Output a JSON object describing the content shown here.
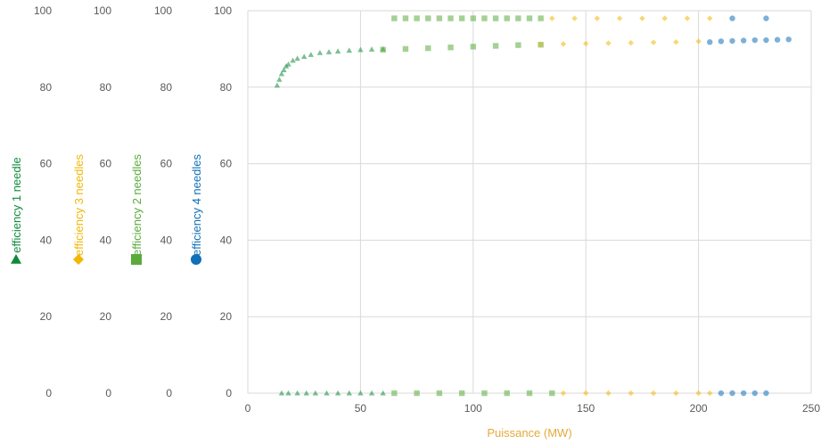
{
  "chart_data": {
    "type": "scatter",
    "title": "",
    "xlabel": "Puissance (MW)",
    "x_ticks": [
      "0",
      "50",
      "100",
      "150",
      "200",
      "250"
    ],
    "xlim": [
      0,
      250
    ],
    "ylim": [
      0,
      100
    ],
    "y_ticks": [
      "0",
      "20",
      "40",
      "60",
      "80",
      "100"
    ],
    "grid": true,
    "y_axes": [
      {
        "label": "efficiency 1 needle",
        "color": "#0f8a3c",
        "marker": "triangle"
      },
      {
        "label": "efficiency 3 needles",
        "color": "#f2b705",
        "marker": "diamond"
      },
      {
        "label": "efficiency 2 needles",
        "color": "#5aab3c",
        "marker": "square"
      },
      {
        "label": "efficiency 4 needles",
        "color": "#1170b8",
        "marker": "circle"
      }
    ],
    "series": [
      {
        "name": "efficiency 1 needle",
        "color": "#0f8a3c",
        "marker": "triangle",
        "x": [
          13,
          14,
          15,
          16,
          17,
          18,
          20,
          22,
          25,
          28,
          32,
          36,
          40,
          45,
          50,
          55,
          60,
          15,
          18,
          22,
          26,
          30,
          35,
          40,
          45,
          50,
          55,
          60
        ],
        "y": [
          80.5,
          82,
          83.5,
          84.5,
          85.5,
          86,
          87,
          87.5,
          88,
          88.5,
          89,
          89.2,
          89.4,
          89.6,
          89.8,
          89.9,
          90,
          0,
          0,
          0,
          0,
          0,
          0,
          0,
          0,
          0,
          0,
          0
        ]
      },
      {
        "name": "efficiency 2 needles",
        "color": "#5aab3c",
        "marker": "square",
        "x": [
          60,
          70,
          80,
          90,
          100,
          110,
          120,
          130,
          65,
          70,
          75,
          80,
          85,
          90,
          95,
          100,
          105,
          110,
          115,
          120,
          125,
          130,
          65,
          75,
          85,
          95,
          105,
          115,
          125,
          135
        ],
        "y": [
          89.8,
          90,
          90.2,
          90.4,
          90.6,
          90.8,
          91,
          91.1,
          98,
          98,
          98,
          98,
          98,
          98,
          98,
          98,
          98,
          98,
          98,
          98,
          98,
          98,
          0,
          0,
          0,
          0,
          0,
          0,
          0,
          0
        ]
      },
      {
        "name": "efficiency 3 needles",
        "color": "#f2b705",
        "marker": "diamond",
        "x": [
          130,
          140,
          150,
          160,
          170,
          180,
          190,
          200,
          135,
          145,
          155,
          165,
          175,
          185,
          195,
          205,
          140,
          150,
          160,
          170,
          180,
          190,
          200,
          205
        ],
        "y": [
          91.2,
          91.3,
          91.4,
          91.5,
          91.6,
          91.7,
          91.8,
          92,
          98,
          98,
          98,
          98,
          98,
          98,
          98,
          98,
          0,
          0,
          0,
          0,
          0,
          0,
          0,
          0
        ]
      },
      {
        "name": "efficiency 4 needles",
        "color": "#1170b8",
        "marker": "circle",
        "x": [
          205,
          210,
          215,
          220,
          225,
          230,
          235,
          240,
          210,
          215,
          220,
          225,
          230,
          215,
          230
        ],
        "y": [
          91.8,
          92,
          92.1,
          92.2,
          92.3,
          92.3,
          92.4,
          92.5,
          0,
          0,
          0,
          0,
          0,
          98,
          98
        ]
      }
    ]
  }
}
